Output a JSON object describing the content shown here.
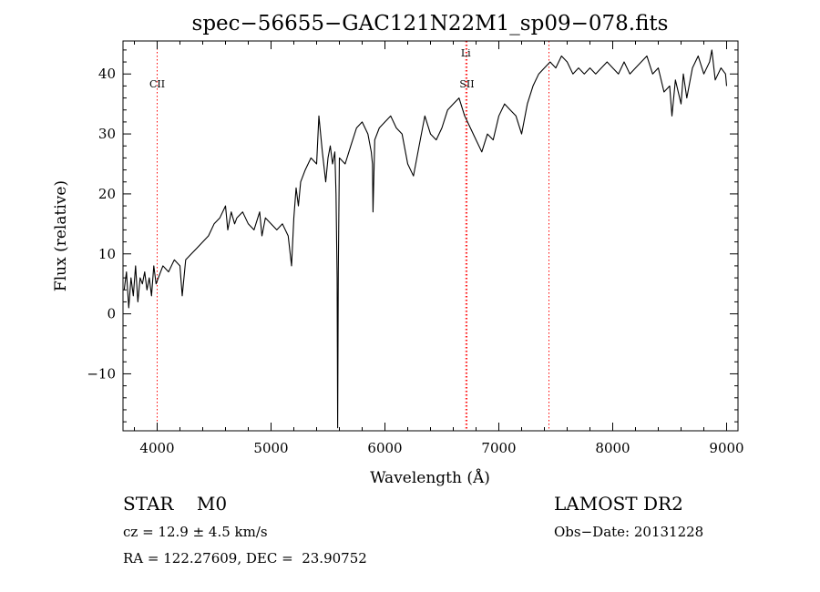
{
  "chart_data": {
    "type": "line",
    "title": "spec−56655−GAC121N22M1_sp09−078.fits",
    "xlabel": "Wavelength (Å)",
    "ylabel": "Flux (relative)",
    "xlim": [
      3700,
      9100
    ],
    "ylim": [
      -19.5,
      45.5
    ],
    "xticks": [
      4000,
      5000,
      6000,
      7000,
      8000,
      9000
    ],
    "xtick_labels": [
      "4000",
      "5000",
      "6000",
      "7000",
      "8000",
      "9000"
    ],
    "yticks": [
      -10,
      0,
      10,
      20,
      30,
      40
    ],
    "ytick_labels": [
      "−10",
      "0",
      "10",
      "20",
      "30",
      "40"
    ],
    "grid": false,
    "line_color": "#000000",
    "marker_color": "#ff0000",
    "markers": [
      {
        "label": "CII",
        "x": 4000
      },
      {
        "label": "SII",
        "x": 6720
      },
      {
        "label": "Li",
        "x": 6710
      },
      {
        "label": "",
        "x": 7440
      }
    ],
    "series": [
      {
        "x": [
          3710,
          3730,
          3750,
          3770,
          3790,
          3810,
          3830,
          3850,
          3870,
          3890,
          3910,
          3930,
          3950,
          3970,
          3990,
          4010,
          4050,
          4100,
          4150,
          4200,
          4220,
          4250,
          4300,
          4350,
          4400,
          4450,
          4500,
          4550,
          4600,
          4620,
          4650,
          4680,
          4700,
          4750,
          4800,
          4850,
          4900,
          4920,
          4950,
          5000,
          5050,
          5100,
          5150,
          5180,
          5200,
          5220,
          5240,
          5260,
          5300,
          5350,
          5400,
          5420,
          5450,
          5480,
          5500,
          5520,
          5540,
          5560,
          5570,
          5580,
          5585,
          5590,
          5600,
          5650,
          5700,
          5750,
          5800,
          5850,
          5880,
          5890,
          5895,
          5910,
          5950,
          6000,
          6050,
          6100,
          6150,
          6200,
          6250,
          6300,
          6350,
          6400,
          6450,
          6500,
          6550,
          6600,
          6650,
          6700,
          6750,
          6800,
          6850,
          6900,
          6950,
          7000,
          7050,
          7100,
          7150,
          7200,
          7250,
          7300,
          7350,
          7400,
          7450,
          7500,
          7550,
          7600,
          7650,
          7700,
          7750,
          7800,
          7850,
          7900,
          7950,
          8000,
          8050,
          8100,
          8150,
          8200,
          8250,
          8300,
          8350,
          8400,
          8450,
          8500,
          8520,
          8550,
          8600,
          8620,
          8650,
          8700,
          8750,
          8800,
          8850,
          8870,
          8900,
          8950,
          8990,
          9000
        ],
        "y": [
          4,
          7,
          1,
          6,
          3,
          8,
          2,
          6,
          5,
          7,
          4,
          6,
          3,
          8,
          5,
          6,
          8,
          7,
          9,
          8,
          3,
          9,
          10,
          11,
          12,
          13,
          15,
          16,
          18,
          14,
          17,
          15,
          16,
          17,
          15,
          14,
          17,
          13,
          16,
          15,
          14,
          15,
          13,
          8,
          16,
          21,
          18,
          22,
          24,
          26,
          25,
          33,
          27,
          22,
          26,
          28,
          25,
          27,
          20,
          6,
          -19,
          7,
          26,
          25,
          28,
          31,
          32,
          30,
          27,
          25,
          17,
          29,
          31,
          32,
          33,
          31,
          30,
          25,
          23,
          28,
          33,
          30,
          29,
          31,
          34,
          35,
          36,
          33,
          31,
          29,
          27,
          30,
          29,
          33,
          35,
          34,
          33,
          30,
          35,
          38,
          40,
          41,
          42,
          41,
          43,
          42,
          40,
          41,
          40,
          41,
          40,
          41,
          42,
          41,
          40,
          42,
          40,
          41,
          42,
          43,
          40,
          41,
          37,
          38,
          33,
          39,
          35,
          40,
          36,
          41,
          43,
          40,
          42,
          44,
          39,
          41,
          40,
          38
        ]
      }
    ]
  },
  "info": {
    "object": "STAR    M0",
    "survey": "LAMOST DR2",
    "cz": "cz = 12.9 ± 4.5 km/s",
    "obs_date": "Obs−Date: 20131228",
    "coords": "RA = 122.27609, DEC =  23.90752"
  }
}
